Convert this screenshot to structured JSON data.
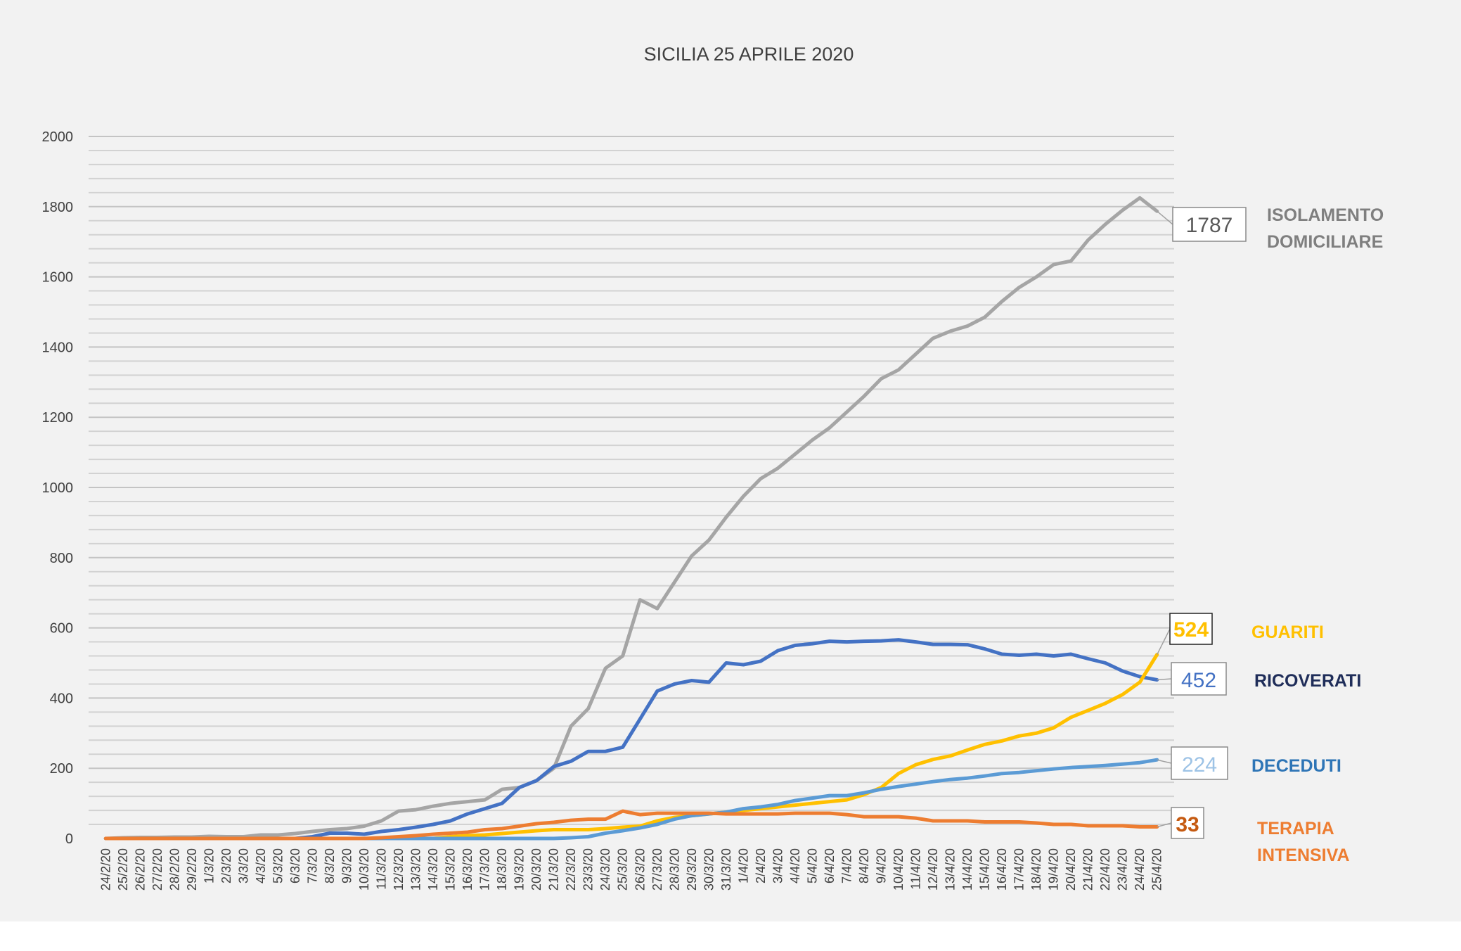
{
  "chart_data": {
    "type": "line",
    "title": "SICILIA 25 APRILE 2020",
    "xlabel": "",
    "ylabel": "",
    "ylim": [
      0,
      2000
    ],
    "yticks": [
      0,
      200,
      400,
      600,
      800,
      1000,
      1200,
      1400,
      1600,
      1800,
      2000
    ],
    "grid": true,
    "legend": "right-end labels",
    "categories": [
      "24/2/20",
      "25/2/20",
      "26/2/20",
      "27/2/20",
      "28/2/20",
      "29/2/20",
      "1/3/20",
      "2/3/20",
      "3/3/20",
      "4/3/20",
      "5/3/20",
      "6/3/20",
      "7/3/20",
      "8/3/20",
      "9/3/20",
      "10/3/20",
      "11/3/20",
      "12/3/20",
      "13/3/20",
      "14/3/20",
      "15/3/20",
      "16/3/20",
      "17/3/20",
      "18/3/20",
      "19/3/20",
      "20/3/20",
      "21/3/20",
      "22/3/20",
      "23/3/20",
      "24/3/20",
      "25/3/20",
      "26/3/20",
      "27/3/20",
      "28/3/20",
      "29/3/20",
      "30/3/20",
      "31/3/20",
      "1/4/20",
      "2/4/20",
      "3/4/20",
      "4/4/20",
      "5/4/20",
      "6/4/20",
      "7/4/20",
      "8/4/20",
      "9/4/20",
      "10/4/20",
      "11/4/20",
      "12/4/20",
      "13/4/20",
      "14/4/20",
      "15/4/20",
      "16/4/20",
      "17/4/20",
      "18/4/20",
      "19/4/20",
      "20/4/20",
      "21/4/20",
      "22/4/20",
      "23/4/20",
      "24/4/20",
      "25/4/20"
    ],
    "series": [
      {
        "name": "ISOLAMENTO DOMICILIARE",
        "color": "#a5a5a5",
        "label_color": "#7f7f7f",
        "end_value": "1787",
        "values": [
          0,
          2,
          3,
          3,
          4,
          4,
          6,
          5,
          5,
          10,
          10,
          14,
          20,
          25,
          28,
          35,
          50,
          78,
          82,
          92,
          100,
          105,
          110,
          140,
          145,
          165,
          200,
          320,
          370,
          485,
          520,
          680,
          655,
          730,
          805,
          850,
          915,
          975,
          1025,
          1055,
          1095,
          1135,
          1170,
          1215,
          1260,
          1310,
          1335,
          1380,
          1425,
          1445,
          1460,
          1485,
          1530,
          1570,
          1600,
          1635,
          1645,
          1705,
          1750,
          1790,
          1825,
          1787
        ]
      },
      {
        "name": "RICOVERATI",
        "color": "#4472c4",
        "label_color": "#1f2d59",
        "end_value": "452",
        "values": [
          0,
          0,
          0,
          0,
          0,
          0,
          0,
          0,
          0,
          0,
          0,
          0,
          5,
          15,
          15,
          12,
          20,
          25,
          32,
          40,
          50,
          70,
          85,
          100,
          145,
          165,
          205,
          220,
          248,
          248,
          260,
          340,
          420,
          440,
          450,
          445,
          500,
          495,
          505,
          535,
          550,
          555,
          562,
          560,
          562,
          563,
          566,
          560,
          553,
          553,
          552,
          540,
          525,
          522,
          525,
          520,
          525,
          512,
          500,
          477,
          461,
          452
        ]
      },
      {
        "name": "GUARITI",
        "color": "#ffc000",
        "label_color": "#ffc000",
        "end_value": "524",
        "values": [
          0,
          0,
          0,
          0,
          0,
          0,
          0,
          0,
          0,
          0,
          0,
          0,
          0,
          0,
          0,
          0,
          0,
          0,
          0,
          0,
          5,
          8,
          10,
          14,
          18,
          22,
          25,
          25,
          25,
          28,
          32,
          35,
          50,
          60,
          65,
          70,
          75,
          80,
          85,
          90,
          95,
          100,
          105,
          110,
          125,
          145,
          185,
          210,
          225,
          235,
          252,
          268,
          278,
          292,
          300,
          315,
          345,
          365,
          385,
          410,
          445,
          524
        ]
      },
      {
        "name": "DECEDUTI",
        "color": "#5b9bd5",
        "label_color": "#2e75b6",
        "end_value": "224",
        "values": [
          0,
          0,
          0,
          0,
          0,
          0,
          0,
          0,
          0,
          0,
          0,
          0,
          0,
          0,
          0,
          0,
          0,
          0,
          0,
          0,
          0,
          0,
          0,
          0,
          0,
          0,
          0,
          2,
          5,
          15,
          22,
          30,
          40,
          55,
          65,
          70,
          75,
          85,
          90,
          97,
          108,
          115,
          122,
          122,
          130,
          140,
          148,
          155,
          162,
          168,
          172,
          178,
          185,
          188,
          193,
          198,
          202,
          205,
          208,
          212,
          216,
          224
        ]
      },
      {
        "name": "TERAPIA INTENSIVA",
        "color": "#ed7d31",
        "label_color": "#ed7d31",
        "end_value": "33",
        "values": [
          0,
          0,
          0,
          0,
          0,
          0,
          0,
          0,
          0,
          0,
          0,
          0,
          0,
          0,
          0,
          0,
          2,
          5,
          8,
          12,
          15,
          18,
          25,
          28,
          35,
          42,
          46,
          52,
          55,
          55,
          78,
          68,
          72,
          72,
          72,
          72,
          70,
          70,
          70,
          70,
          72,
          72,
          72,
          68,
          62,
          62,
          62,
          58,
          50,
          50,
          50,
          47,
          47,
          47,
          44,
          40,
          40,
          36,
          36,
          36,
          33,
          33
        ]
      }
    ]
  }
}
